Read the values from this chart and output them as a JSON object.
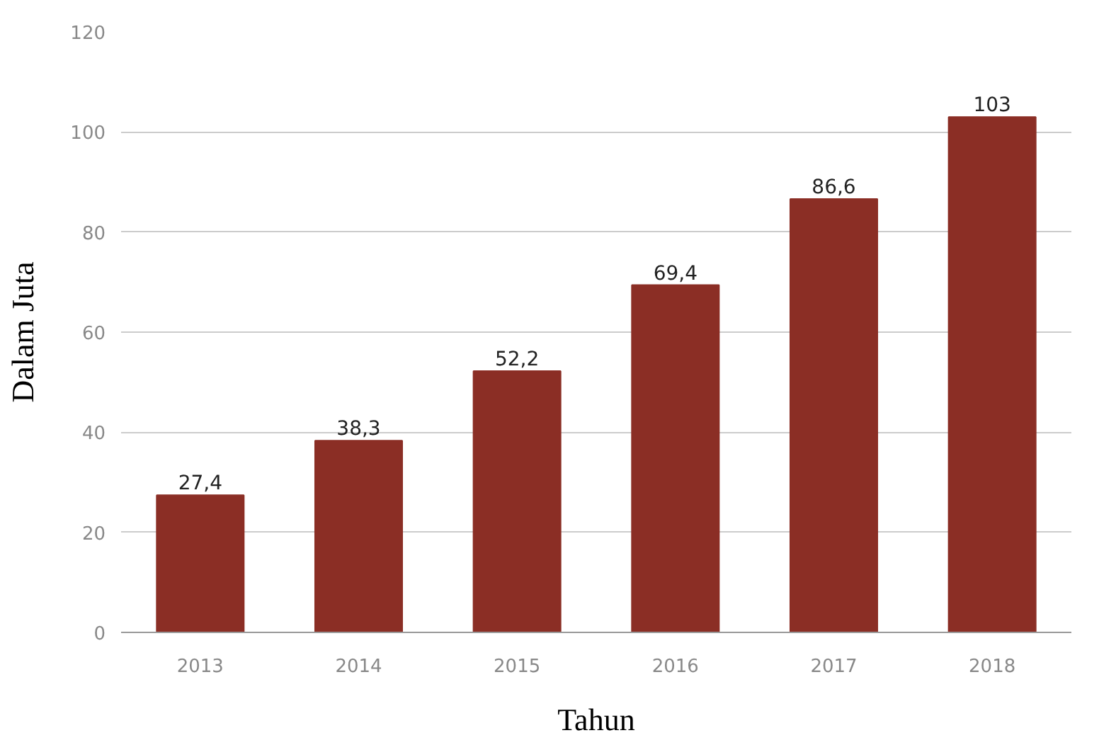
{
  "chart_data": {
    "type": "bar",
    "xlabel": "Tahun",
    "ylabel": "Dalam Juta",
    "categories": [
      "2013",
      "2014",
      "2015",
      "2016",
      "2017",
      "2018"
    ],
    "values": [
      27.4,
      38.3,
      52.2,
      69.4,
      86.6,
      103
    ],
    "value_labels": [
      "27,4",
      "38,3",
      "52,2",
      "69,4",
      "86,6",
      "103"
    ],
    "color": "#8b2e25",
    "ylim": [
      0,
      120
    ],
    "yticks": [
      0,
      20,
      40,
      60,
      80,
      100,
      120
    ],
    "grid": "y"
  }
}
